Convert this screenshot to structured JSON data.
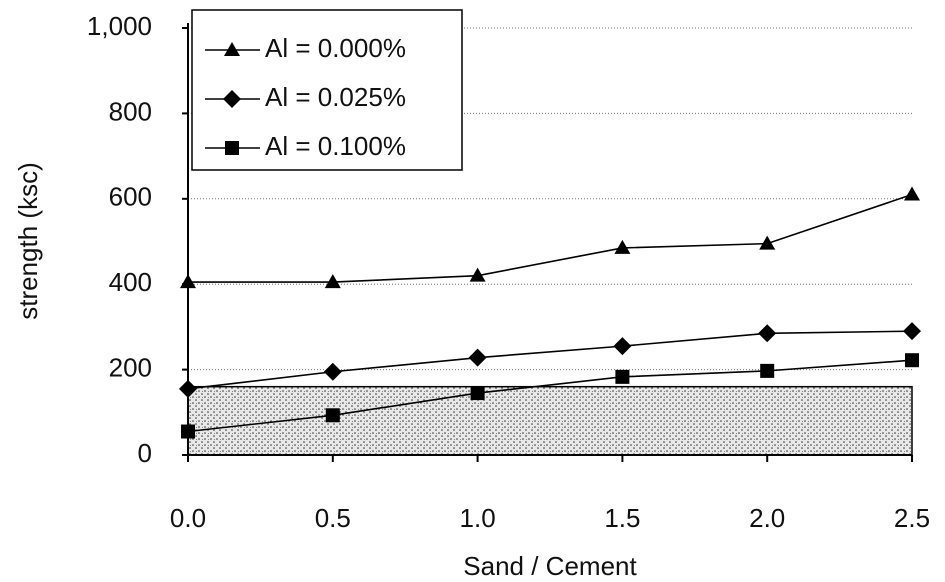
{
  "chart_data": {
    "type": "line",
    "x_label": "Sand / Cement",
    "y_label": "strength (ksc)",
    "x": [
      0,
      0.5,
      1,
      1.5,
      2,
      2.5
    ],
    "series": [
      {
        "name": "Al = 0.000%",
        "color": "#000000",
        "marker": "triangle",
        "values": [
          405,
          405,
          420,
          485,
          495,
          610
        ]
      },
      {
        "name": "Al = 0.025%",
        "color": "#000000",
        "marker": "diamond",
        "values": [
          155,
          195,
          228,
          255,
          285,
          290
        ]
      },
      {
        "name": "Al = 0.100%",
        "color": "#000000",
        "marker": "square",
        "values": [
          55,
          93,
          145,
          183,
          197,
          222
        ]
      }
    ],
    "shaded_band": [
      0,
      160
    ],
    "xlim": [
      0,
      2.5
    ],
    "ylim": [
      0,
      1000
    ],
    "xticks": [
      {
        "value": 0,
        "label": "0.0"
      },
      0.5,
      {
        "value": 1,
        "label": "1.0"
      },
      1.5,
      {
        "value": 2,
        "label": "2.0"
      },
      2.5
    ],
    "yticks": [
      0,
      200,
      400,
      600,
      800,
      {
        "value": 1000,
        "label": "1,000"
      }
    ],
    "grid": true,
    "legend": "upper-left"
  }
}
